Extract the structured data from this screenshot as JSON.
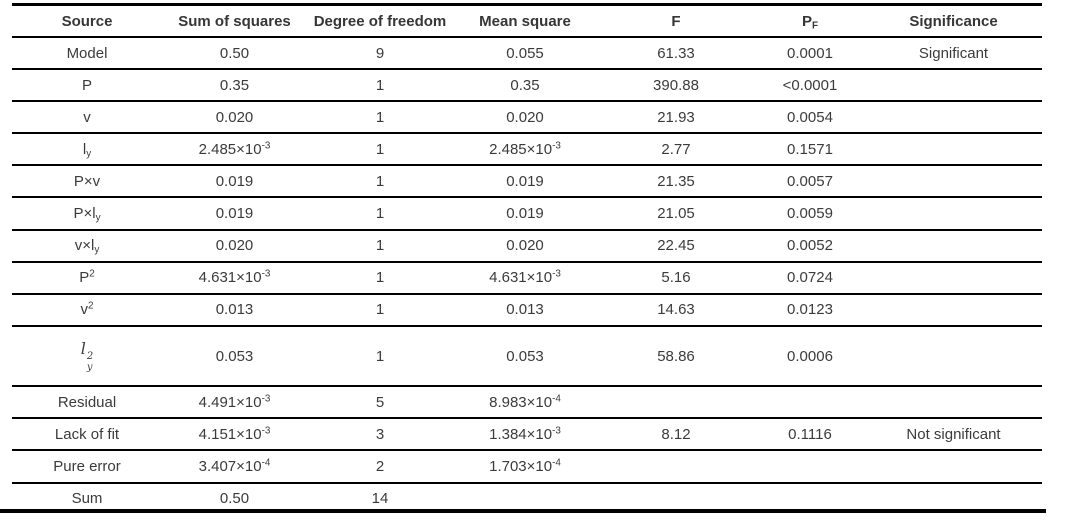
{
  "table": {
    "column_keys": [
      "source",
      "sum-of-squares",
      "degree-of-freedom",
      "mean-square",
      "f",
      "p-f",
      "significance"
    ],
    "columns": [
      "Source",
      "Sum of squares",
      "Degree of freedom",
      "Mean square",
      "F",
      "P_{F}",
      "Significance"
    ],
    "rows": [
      {
        "cells": [
          "Model",
          "0.50",
          "9",
          "0.055",
          "61.33",
          "0.0001",
          "Significant"
        ]
      },
      {
        "cells": [
          "P",
          "0.35",
          "1",
          "0.35",
          "390.88",
          "<0.0001",
          ""
        ]
      },
      {
        "cells": [
          "v",
          "0.020",
          "1",
          "0.020",
          "21.93",
          "0.0054",
          ""
        ]
      },
      {
        "cells": [
          "l_{y}",
          "2.485×10^{-3}",
          "1",
          "2.485×10^{-3}",
          "2.77",
          "0.1571",
          ""
        ]
      },
      {
        "cells": [
          "P×v",
          "0.019",
          "1",
          "0.019",
          "21.35",
          "0.0057",
          ""
        ]
      },
      {
        "cells": [
          "P×l_{y}",
          "0.019",
          "1",
          "0.019",
          "21.05",
          "0.0059",
          ""
        ]
      },
      {
        "cells": [
          "v×l_{y}",
          "0.020",
          "1",
          "0.020",
          "22.45",
          "0.0052",
          ""
        ]
      },
      {
        "cells": [
          "P^{2}",
          "4.631×10^{-3}",
          "1",
          "4.631×10^{-3}",
          "5.16",
          "0.0724",
          ""
        ]
      },
      {
        "cells": [
          "v^{2}",
          "0.013",
          "1",
          "0.013",
          "14.63",
          "0.0123",
          ""
        ]
      },
      {
        "cells": [
          "l^{2}_{y}",
          "0.053",
          "1",
          "0.053",
          "58.86",
          "0.0006",
          ""
        ],
        "source_style": "math"
      },
      {
        "cells": [
          "Residual",
          "4.491×10^{-3}",
          "5",
          "8.983×10^{-4}",
          "",
          "",
          ""
        ]
      },
      {
        "cells": [
          "Lack of fit",
          "4.151×10^{-3}",
          "3",
          "1.384×10^{-3}",
          "8.12",
          "0.1116",
          "Not significant"
        ]
      },
      {
        "cells": [
          "Pure error",
          "3.407×10^{-4}",
          "2",
          "1.703×10^{-4}",
          "",
          "",
          ""
        ]
      },
      {
        "cells": [
          "Sum",
          "0.50",
          "14",
          "",
          "",
          "",
          ""
        ]
      }
    ],
    "colors": {
      "text": "#3b3b3b",
      "rule": "#000000",
      "background": "#ffffff"
    }
  }
}
